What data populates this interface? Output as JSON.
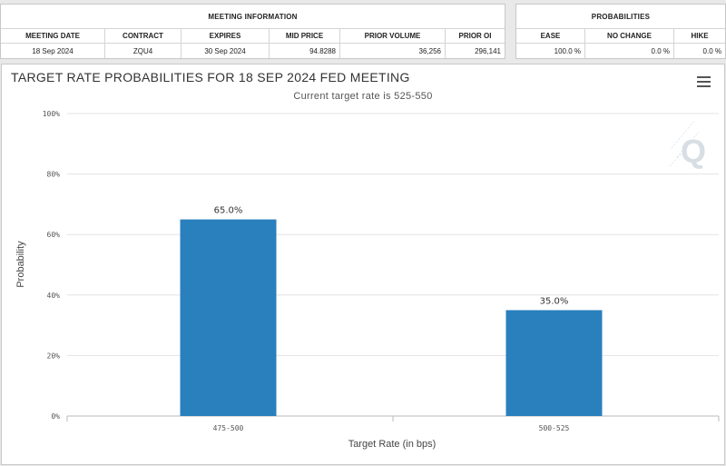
{
  "meeting_info": {
    "title": "MEETING INFORMATION",
    "headers": [
      "MEETING DATE",
      "CONTRACT",
      "EXPIRES",
      "MID PRICE",
      "PRIOR VOLUME",
      "PRIOR OI"
    ],
    "values": [
      "18 Sep 2024",
      "ZQU4",
      "30 Sep 2024",
      "94.8288",
      "36,256",
      "296,141"
    ]
  },
  "probabilities": {
    "title": "PROBABILITIES",
    "headers": [
      "EASE",
      "NO CHANGE",
      "HIKE"
    ],
    "values": [
      "100.0 %",
      "0.0 %",
      "0.0 %"
    ]
  },
  "chart": {
    "title": "TARGET RATE PROBABILITIES FOR 18 SEP 2024 FED MEETING",
    "subtitle": "Current target rate is 525-550",
    "logo_letter": "Q",
    "menu_icon": "hamburger-menu-icon"
  },
  "chart_data": {
    "type": "bar",
    "title": "TARGET RATE PROBABILITIES FOR 18 SEP 2024 FED MEETING",
    "subtitle": "Current target rate is 525-550",
    "categories": [
      "475-500",
      "500-525"
    ],
    "values": [
      65.0,
      35.0
    ],
    "data_labels": [
      "65.0%",
      "35.0%"
    ],
    "xlabel": "Target Rate (in bps)",
    "ylabel": "Probability",
    "ylim": [
      0,
      100
    ],
    "yticks": [
      "0%",
      "20%",
      "40%",
      "60%",
      "80%",
      "100%"
    ],
    "bar_color": "#2a7fbd",
    "grid": true,
    "legend": "none"
  }
}
